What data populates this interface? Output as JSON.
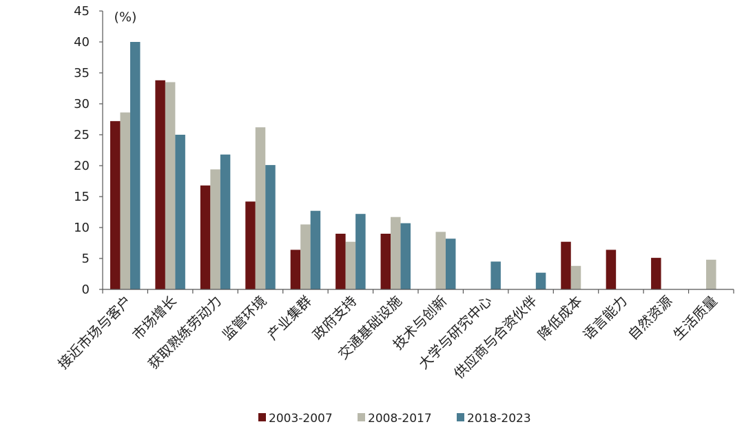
{
  "chart_data": {
    "type": "bar",
    "unit_label": "(%)",
    "ylim": [
      0,
      45
    ],
    "yticks": [
      0,
      5,
      10,
      15,
      20,
      25,
      30,
      35,
      40,
      45
    ],
    "grid": false,
    "legend_position": "bottom",
    "categories": [
      "接近市场与客户",
      "市场增长",
      "获取熟练劳动力",
      "监管环境",
      "产业集群",
      "政府支持",
      "交通基础设施",
      "技术与创新",
      "大学与研究中心",
      "供应商与合资伙伴",
      "降低成本",
      "语言能力",
      "自然资源",
      "生活质量"
    ],
    "series": [
      {
        "name": "2003-2007",
        "color": "#6b1414",
        "values": [
          27.2,
          33.8,
          16.8,
          14.2,
          6.4,
          9.0,
          9.0,
          null,
          null,
          null,
          7.7,
          6.4,
          5.1,
          null
        ]
      },
      {
        "name": "2008-2017",
        "color": "#b9b9ab",
        "values": [
          28.6,
          33.5,
          19.4,
          26.2,
          10.5,
          7.7,
          11.7,
          9.3,
          null,
          null,
          3.8,
          null,
          null,
          4.8
        ]
      },
      {
        "name": "2018-2023",
        "color": "#4a7d92",
        "values": [
          40.0,
          25.0,
          21.8,
          20.1,
          12.7,
          12.2,
          10.7,
          8.2,
          4.5,
          2.7,
          null,
          null,
          null,
          null
        ]
      }
    ]
  }
}
